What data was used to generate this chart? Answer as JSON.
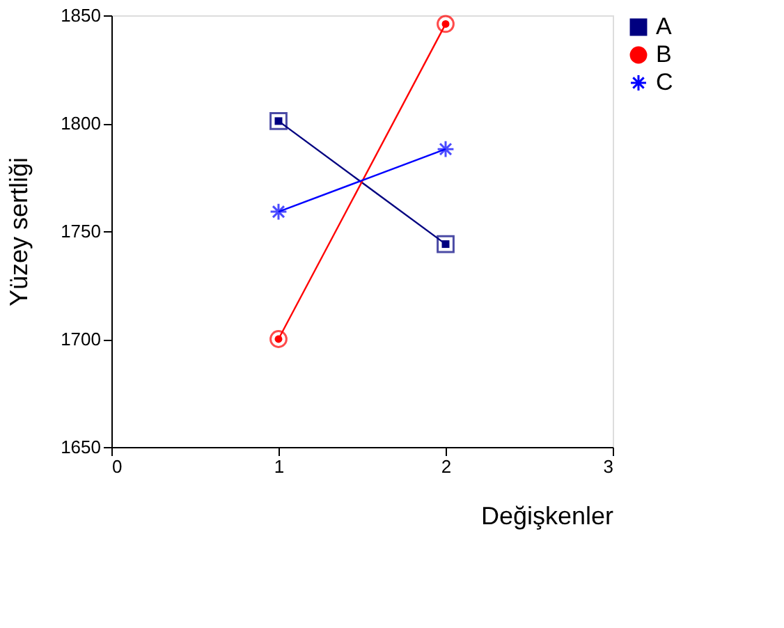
{
  "chart_data": {
    "type": "line",
    "xlabel": "Değişkenler",
    "ylabel": "Yüzey sertliği",
    "x": [
      1,
      2
    ],
    "series": [
      {
        "name": "A",
        "color": "#000080",
        "values": [
          1801,
          1744
        ],
        "marker": "square"
      },
      {
        "name": "B",
        "color": "#ff0000",
        "values": [
          1700,
          1846
        ],
        "marker": "circle"
      },
      {
        "name": "C",
        "color": "#0000ff",
        "values": [
          1759,
          1788
        ],
        "marker": "cross"
      }
    ],
    "xlim": [
      0,
      3
    ],
    "xticks": [
      0,
      1,
      2,
      3
    ],
    "ylim": [
      1650,
      1850
    ],
    "yticks": [
      1650,
      1700,
      1750,
      1800,
      1850
    ],
    "grid": false,
    "legend": "top right",
    "line_style": "solid"
  }
}
